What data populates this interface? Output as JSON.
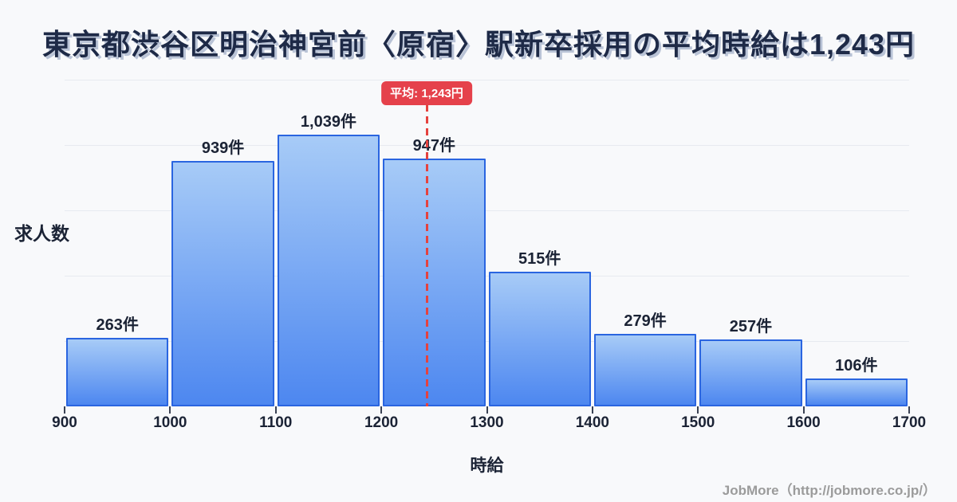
{
  "title": "東京都渋谷区明治神宮前〈原宿〉駅新卒採用の平均時給は1,243円",
  "average": {
    "value": 1243,
    "badge_label": "平均: 1,243円"
  },
  "footer": {
    "credit": "JobMore（http://jobmore.co.jp/）"
  },
  "colors": {
    "background": "#f8f9fb",
    "title_text": "#1e2a47",
    "title_shadow": "#b9c3d6",
    "axis_text": "#1b2335",
    "bar_fill_top": "#a7cbf7",
    "bar_fill_bottom": "#4d87f0",
    "bar_border": "#2a65e0",
    "gridline": "#e7eaf0",
    "mean_line": "#e5423e",
    "badge_bg": "#e5414b",
    "badge_text": "#ffffff",
    "footer_text": "#9b9b9b"
  },
  "chart_data": {
    "type": "bar",
    "title": "東京都渋谷区明治神宮前〈原宿〉駅新卒採用の平均時給は1,243円",
    "xlabel": "時給",
    "ylabel": "求人数",
    "bin_edges": [
      900,
      1000,
      1100,
      1200,
      1300,
      1400,
      1500,
      1600,
      1700
    ],
    "x_tick_labels": [
      "900",
      "1000",
      "1100",
      "1200",
      "1300",
      "1400",
      "1500",
      "1600",
      "1700"
    ],
    "values": [
      263,
      939,
      1039,
      947,
      515,
      279,
      257,
      106
    ],
    "bar_labels": [
      "263件",
      "939件",
      "1,039件",
      "947件",
      "515件",
      "279件",
      "257件",
      "106件"
    ],
    "mean": 1243,
    "mean_label": "平均: 1,243円",
    "xlim": [
      900,
      1700
    ],
    "ylim": [
      0,
      1250
    ],
    "y_gridline_values": [
      250,
      500,
      750,
      1000,
      1250
    ],
    "y_tick_labels": [],
    "grid": "horizontal",
    "legend": null
  }
}
